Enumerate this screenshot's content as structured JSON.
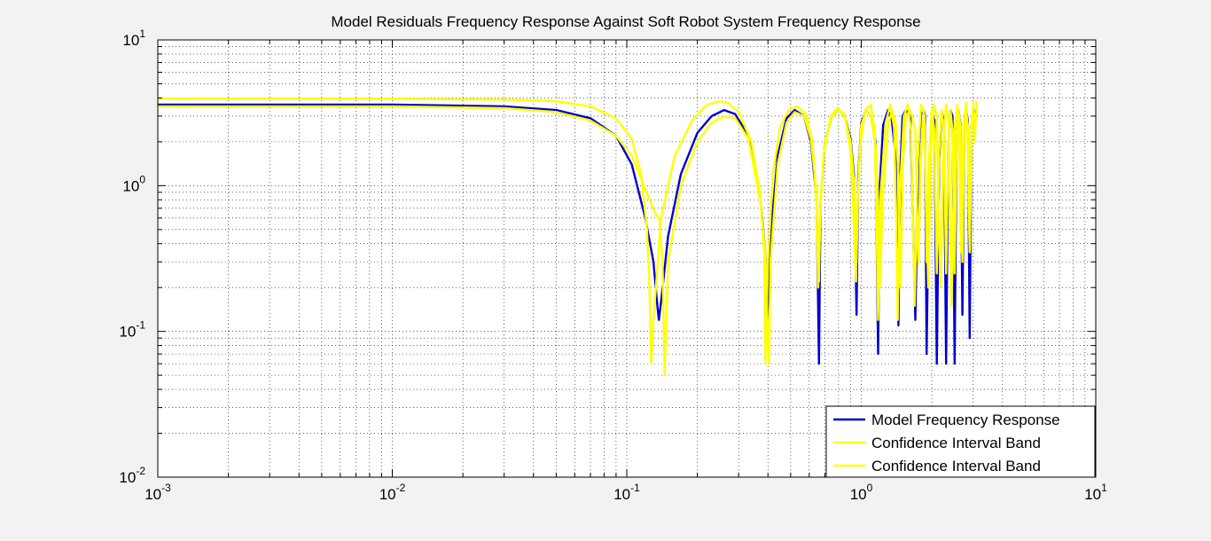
{
  "chart_data": {
    "type": "line",
    "title": "Model Residuals Frequency Response Against Soft Robot System Frequency Response",
    "xlabel": "",
    "ylabel": "",
    "x_scale": "log",
    "y_scale": "log",
    "xlim": [
      0.001,
      10
    ],
    "ylim": [
      0.01,
      10
    ],
    "x_ticks": [
      {
        "value": 0.001,
        "base": "10",
        "exp": "-3"
      },
      {
        "value": 0.01,
        "base": "10",
        "exp": "-2"
      },
      {
        "value": 0.1,
        "base": "10",
        "exp": "-1"
      },
      {
        "value": 1,
        "base": "10",
        "exp": "0"
      },
      {
        "value": 10,
        "base": "10",
        "exp": "1"
      }
    ],
    "y_ticks": [
      {
        "value": 0.01,
        "base": "10",
        "exp": "-2"
      },
      {
        "value": 0.1,
        "base": "10",
        "exp": "-1"
      },
      {
        "value": 1,
        "base": "10",
        "exp": "0"
      },
      {
        "value": 10,
        "base": "10",
        "exp": "1"
      }
    ],
    "grid": true,
    "legend_position": "bottom-right",
    "series": [
      {
        "name": "Model Frequency Response",
        "color": "#0000cc",
        "x": [
          0.001,
          0.003,
          0.01,
          0.03,
          0.05,
          0.07,
          0.09,
          0.105,
          0.12,
          0.13,
          0.135,
          0.137,
          0.14,
          0.15,
          0.17,
          0.2,
          0.23,
          0.26,
          0.29,
          0.33,
          0.37,
          0.39,
          0.398,
          0.41,
          0.44,
          0.48,
          0.52,
          0.57,
          0.61,
          0.645,
          0.66,
          0.67,
          0.7,
          0.75,
          0.8,
          0.85,
          0.9,
          0.93,
          0.955,
          0.97,
          1.0,
          1.05,
          1.1,
          1.15,
          1.18,
          1.2,
          1.24,
          1.3,
          1.35,
          1.4,
          1.44,
          1.47,
          1.5,
          1.55,
          1.62,
          1.7,
          1.75,
          1.8,
          1.85,
          1.87,
          1.9,
          1.95,
          2.0,
          2.05,
          2.1,
          2.15,
          2.2,
          2.25,
          2.3,
          2.35,
          2.4,
          2.45,
          2.5,
          2.55,
          2.6,
          2.65,
          2.7,
          2.75,
          2.8,
          2.85,
          2.9,
          2.95,
          3.0,
          3.05,
          3.1
        ],
        "y": [
          3.6,
          3.6,
          3.6,
          3.5,
          3.3,
          2.9,
          2.2,
          1.4,
          0.6,
          0.3,
          0.15,
          0.12,
          0.16,
          0.45,
          1.2,
          2.3,
          3.0,
          3.3,
          3.1,
          2.2,
          0.85,
          0.35,
          0.12,
          0.45,
          1.6,
          2.9,
          3.3,
          3.0,
          2.0,
          0.8,
          0.06,
          0.75,
          2.0,
          3.0,
          3.3,
          3.0,
          2.1,
          1.2,
          0.13,
          1.1,
          2.7,
          3.3,
          3.0,
          2.0,
          0.07,
          1.0,
          2.6,
          3.3,
          2.8,
          1.6,
          0.11,
          1.4,
          3.0,
          3.3,
          3.0,
          0.12,
          1.5,
          3.1,
          3.3,
          3.0,
          0.07,
          1.5,
          3.2,
          2.8,
          0.06,
          1.5,
          3.2,
          2.8,
          0.06,
          1.8,
          3.3,
          3.0,
          0.06,
          2.0,
          3.3,
          2.6,
          0.13,
          2.3,
          3.3,
          2.8,
          0.09,
          2.5,
          3.4,
          3.0,
          3.4
        ]
      },
      {
        "name": "Confidence Interval Band",
        "color": "#ffff00",
        "x": [
          0.001,
          0.003,
          0.01,
          0.03,
          0.05,
          0.07,
          0.09,
          0.105,
          0.115,
          0.122,
          0.125,
          0.127,
          0.13,
          0.14,
          0.16,
          0.19,
          0.22,
          0.25,
          0.27,
          0.3,
          0.34,
          0.37,
          0.385,
          0.39,
          0.4,
          0.42,
          0.45,
          0.49,
          0.53,
          0.58,
          0.62,
          0.645,
          0.655,
          0.665,
          0.69,
          0.74,
          0.79,
          0.85,
          0.9,
          0.93,
          0.95,
          0.96,
          0.99,
          1.04,
          1.1,
          1.14,
          1.16,
          1.18,
          1.21,
          1.27,
          1.33,
          1.38,
          1.41,
          1.43,
          1.46,
          1.52,
          1.58,
          1.63,
          1.66,
          1.69,
          1.74,
          1.8,
          1.86,
          1.9,
          1.93,
          1.98,
          2.04,
          2.1,
          2.15,
          2.18,
          2.24,
          2.3,
          2.36,
          2.4,
          2.43,
          2.5,
          2.57,
          2.62,
          2.66,
          2.73,
          2.8,
          2.85,
          2.9,
          2.96,
          3.0,
          3.05,
          3.1
        ],
        "y": [
          3.95,
          3.95,
          3.95,
          3.9,
          3.8,
          3.5,
          2.9,
          2.1,
          1.2,
          0.5,
          0.2,
          0.06,
          0.12,
          0.6,
          1.6,
          2.8,
          3.6,
          3.8,
          3.7,
          3.2,
          2.0,
          0.9,
          0.35,
          0.06,
          0.3,
          1.2,
          2.5,
          3.3,
          3.5,
          3.1,
          2.0,
          0.7,
          0.2,
          0.55,
          1.6,
          3.0,
          3.4,
          3.1,
          1.7,
          0.5,
          0.22,
          0.6,
          1.9,
          3.3,
          3.6,
          2.4,
          0.7,
          0.12,
          0.9,
          2.7,
          3.6,
          2.5,
          0.6,
          0.12,
          0.9,
          3.0,
          3.6,
          2.4,
          0.6,
          0.15,
          1.4,
          3.6,
          3.0,
          0.6,
          0.2,
          1.6,
          3.6,
          3.0,
          0.5,
          0.2,
          2.0,
          3.6,
          2.6,
          0.4,
          0.15,
          2.4,
          3.6,
          2.0,
          0.35,
          2.6,
          3.7,
          1.8,
          0.35,
          2.8,
          3.7,
          2.0,
          3.8
        ]
      },
      {
        "name": "Confidence Interval Band",
        "color": "#ffff00",
        "x": [
          0.001,
          0.003,
          0.01,
          0.03,
          0.05,
          0.07,
          0.09,
          0.105,
          0.12,
          0.132,
          0.138,
          0.142,
          0.145,
          0.15,
          0.17,
          0.2,
          0.23,
          0.26,
          0.29,
          0.33,
          0.37,
          0.39,
          0.398,
          0.404,
          0.41,
          0.44,
          0.48,
          0.52,
          0.57,
          0.61,
          0.645,
          0.66,
          0.67,
          0.7,
          0.75,
          0.8,
          0.85,
          0.9,
          0.93,
          0.955,
          0.97,
          1.0,
          1.05,
          1.1,
          1.15,
          1.18,
          1.2,
          1.24,
          1.3,
          1.35,
          1.4,
          1.44,
          1.47,
          1.5,
          1.55,
          1.62,
          1.7,
          1.75,
          1.8,
          1.85,
          1.87,
          1.9,
          1.95,
          2.0,
          2.05,
          2.1,
          2.15,
          2.2,
          2.25,
          2.3,
          2.35,
          2.4,
          2.45,
          2.5,
          2.55,
          2.6,
          2.65,
          2.7,
          2.75,
          2.8,
          2.85,
          2.9,
          2.95,
          3.0,
          3.05,
          3.1
        ],
        "y": [
          3.5,
          3.5,
          3.5,
          3.4,
          3.2,
          2.8,
          2.2,
          1.6,
          0.95,
          0.65,
          0.58,
          0.3,
          0.05,
          0.3,
          1.0,
          2.0,
          2.7,
          3.0,
          2.9,
          2.1,
          0.8,
          0.35,
          0.12,
          0.06,
          0.3,
          1.4,
          2.7,
          3.2,
          3.0,
          2.1,
          0.9,
          0.22,
          0.8,
          2.0,
          3.0,
          3.3,
          3.0,
          2.0,
          1.1,
          0.3,
          1.0,
          2.6,
          3.3,
          3.0,
          1.9,
          0.8,
          0.2,
          0.9,
          2.5,
          3.3,
          2.7,
          1.2,
          0.2,
          1.3,
          3.0,
          3.3,
          2.4,
          0.3,
          1.6,
          3.3,
          2.4,
          0.3,
          1.6,
          3.3,
          2.4,
          0.25,
          1.7,
          3.3,
          2.4,
          0.25,
          1.8,
          3.3,
          2.4,
          0.25,
          2.0,
          3.3,
          2.5,
          0.3,
          2.2,
          3.3,
          2.6,
          0.35,
          2.4,
          3.4,
          2.4,
          3.6
        ]
      }
    ]
  }
}
